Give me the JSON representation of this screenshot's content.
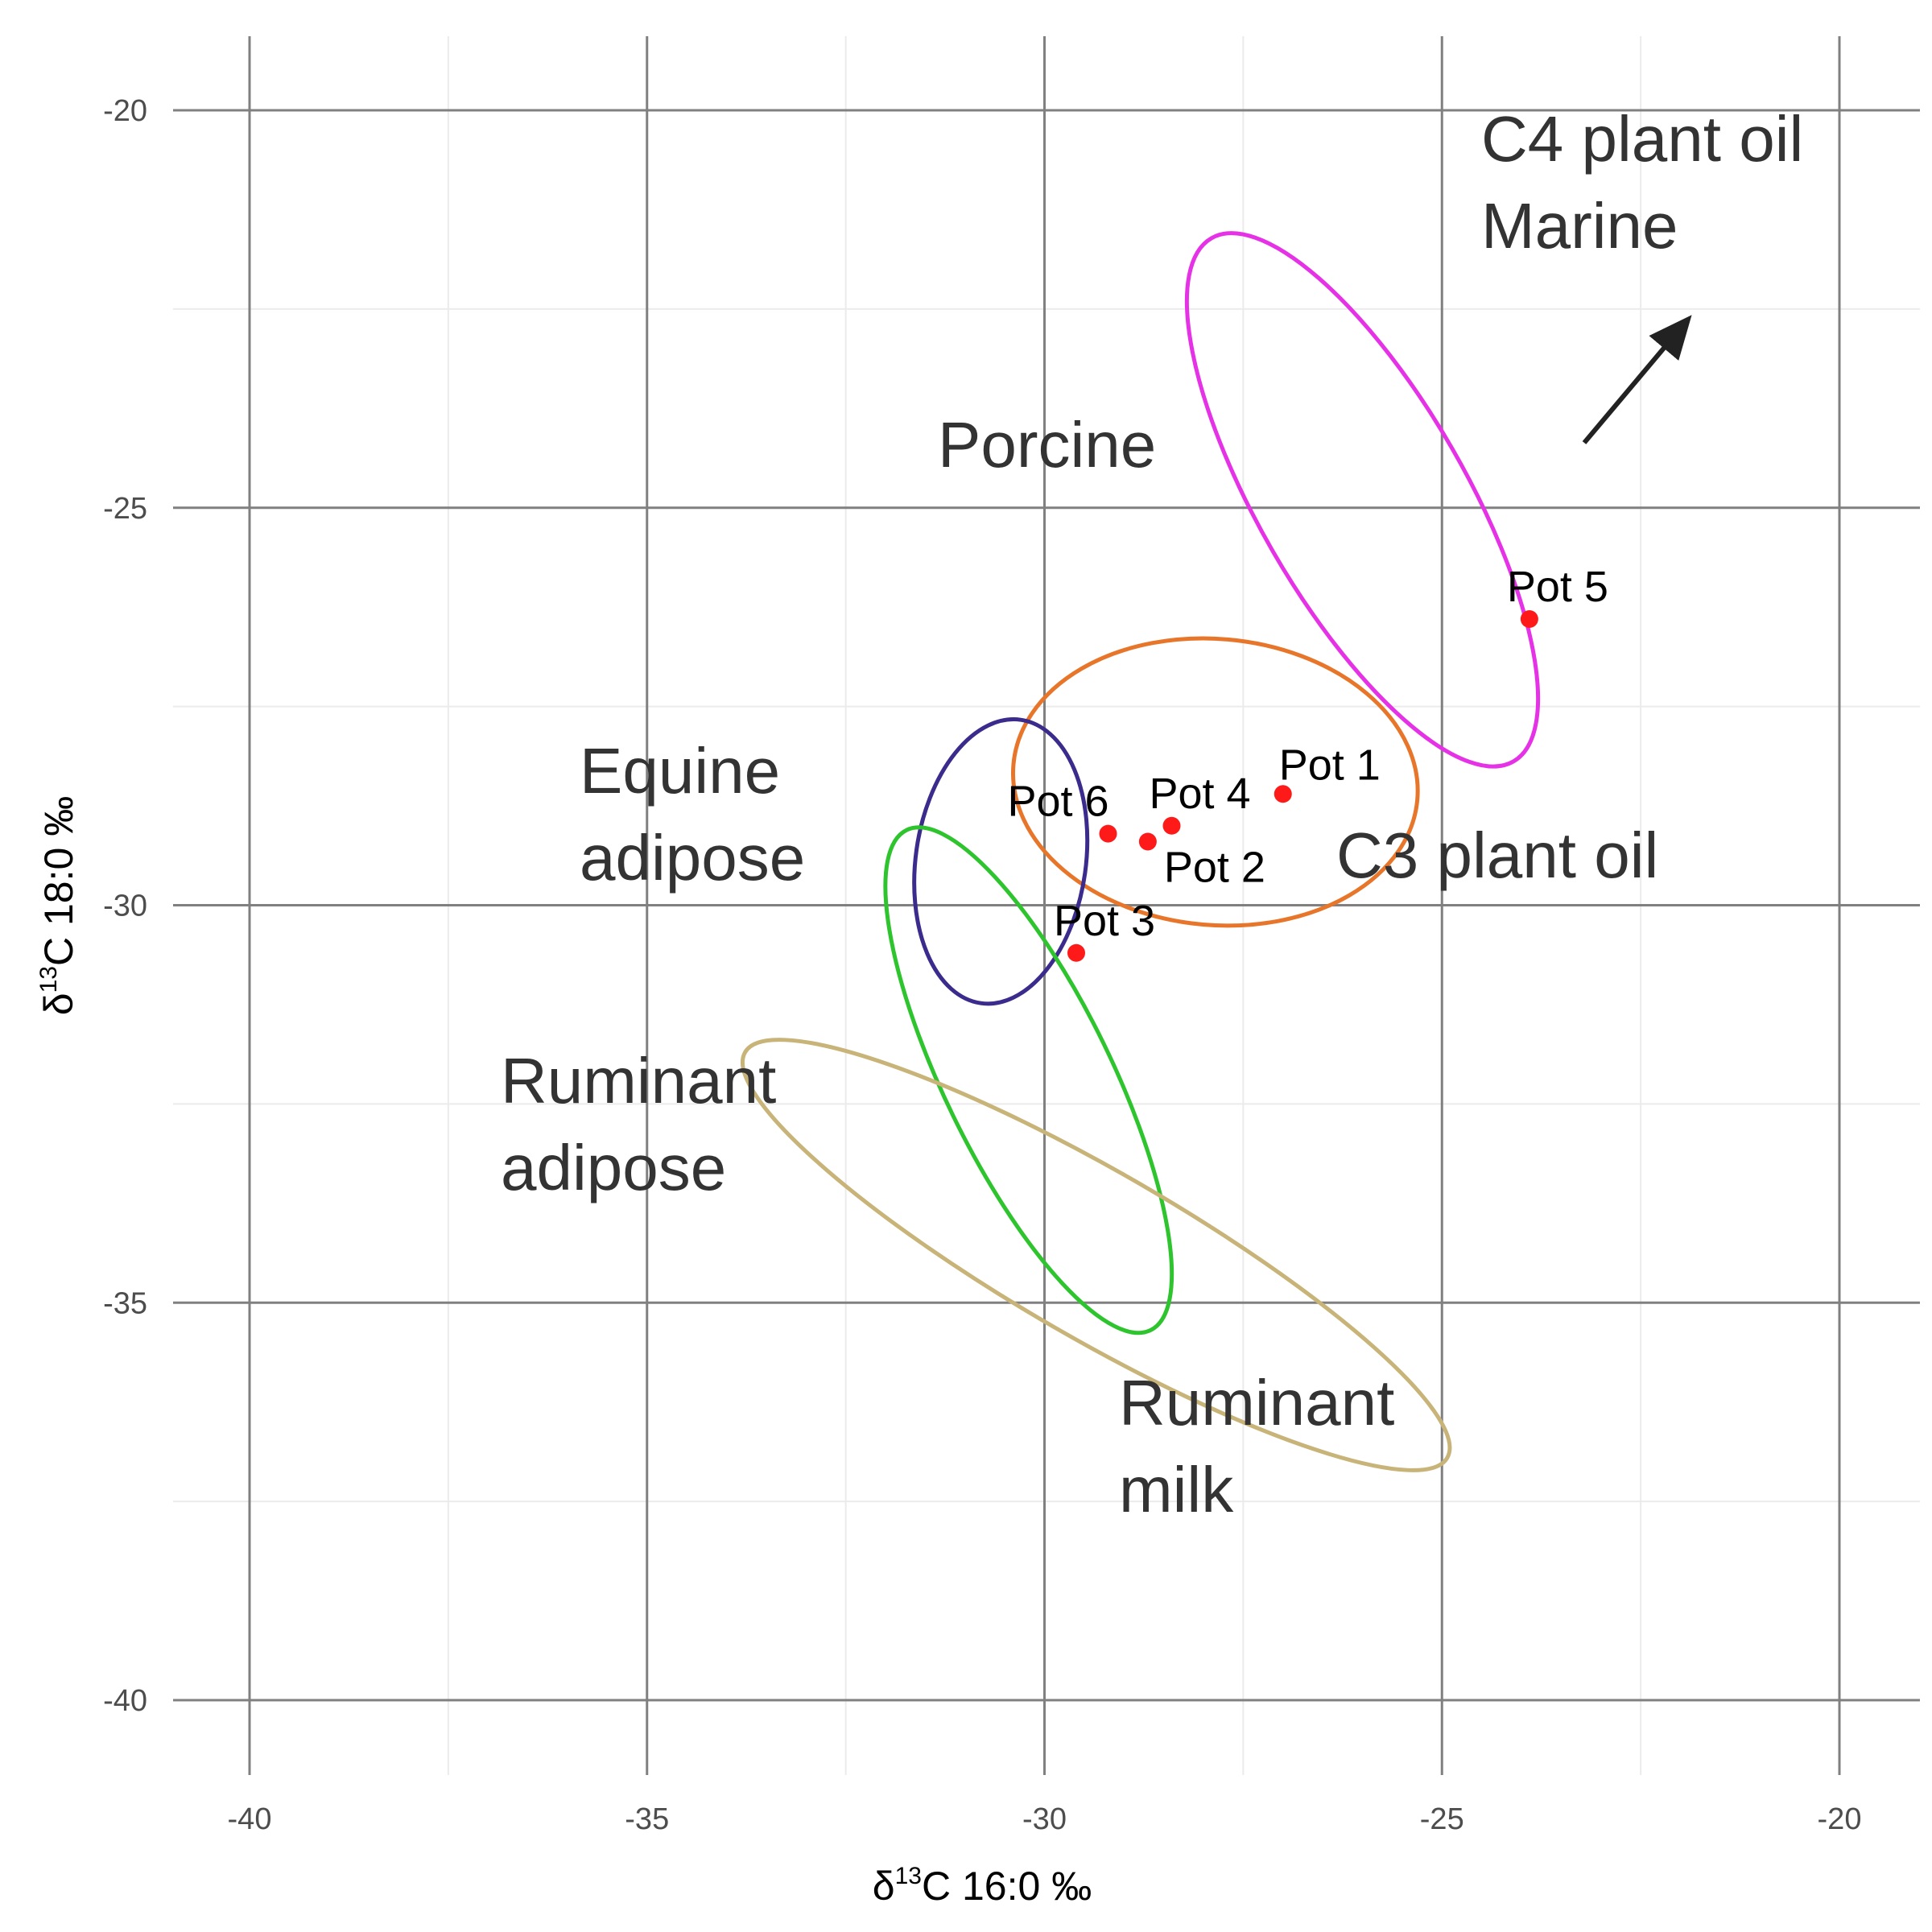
{
  "chart_data": {
    "type": "scatter",
    "xlabel_parts": [
      "δ",
      "13",
      "C 16:0 ‰"
    ],
    "ylabel_parts": [
      "δ",
      "13",
      "C 18:0 ‰"
    ],
    "xlim": [
      -41,
      -19
    ],
    "ylim": [
      -41,
      -19
    ],
    "x_ticks": [
      {
        "value": -40,
        "label": "-40"
      },
      {
        "value": -35,
        "label": "-35"
      },
      {
        "value": -30,
        "label": "-30"
      },
      {
        "value": -25,
        "label": "-25"
      },
      {
        "value": -20,
        "label": "-20"
      }
    ],
    "y_ticks": [
      {
        "value": -20,
        "label": "-20"
      },
      {
        "value": -25,
        "label": "-25"
      },
      {
        "value": -30,
        "label": "-30"
      },
      {
        "value": -35,
        "label": "-35"
      },
      {
        "value": -40,
        "label": "-40"
      }
    ],
    "grid": true,
    "points": [
      {
        "label": "Pot 1",
        "x": -27.0,
        "y": -28.6
      },
      {
        "label": "Pot 2",
        "x": -28.7,
        "y": -29.2
      },
      {
        "label": "Pot 3",
        "x": -29.6,
        "y": -30.6
      },
      {
        "label": "Pot 4",
        "x": -28.4,
        "y": -29.0
      },
      {
        "label": "Pot 5",
        "x": -23.9,
        "y": -26.4
      },
      {
        "label": "Pot 6",
        "x": -29.2,
        "y": -29.1
      }
    ],
    "point_color": "#ff1a1a",
    "regions": [
      {
        "label": "Porcine",
        "cx": -26.0,
        "cy": -24.9,
        "rx": 1.3,
        "ry": 3.8,
        "angle": -30,
        "color": "#e632e6"
      },
      {
        "label": "C3 plant oil",
        "cx": -27.85,
        "cy": -28.45,
        "rx": 2.55,
        "ry": 1.8,
        "angle": 5,
        "color": "#e8762a"
      },
      {
        "label": "Equine adipose",
        "cx": -30.55,
        "cy": -29.45,
        "rx": 1.07,
        "ry": 1.8,
        "angle": 8,
        "color": "#3b2b8c"
      },
      {
        "label": "Ruminant adipose",
        "cx": -30.2,
        "cy": -32.2,
        "rx": 1.05,
        "ry": 3.5,
        "angle": -26,
        "color": "#2ec42e"
      },
      {
        "label": "Ruminant milk",
        "cx": -29.35,
        "cy": -34.4,
        "rx": 1.05,
        "ry": 5.1,
        "angle": -60,
        "color": "#c8b478"
      }
    ],
    "group_labels": [
      {
        "id": "c4",
        "lines": [
          "C4 plant oil",
          "Marine"
        ]
      },
      {
        "id": "porcine",
        "lines": [
          "Porcine"
        ]
      },
      {
        "id": "equine",
        "lines": [
          "Equine",
          "adipose"
        ]
      },
      {
        "id": "c3",
        "lines": [
          "C3 plant oil"
        ]
      },
      {
        "id": "ruminant-adipose",
        "lines": [
          "Ruminant",
          "adipose"
        ]
      },
      {
        "id": "ruminant-milk",
        "lines": [
          "Ruminant",
          "milk"
        ]
      }
    ],
    "colors": {
      "major_grid": "#808080",
      "minor_grid": "#ebebeb",
      "arrow": "#222222"
    }
  }
}
